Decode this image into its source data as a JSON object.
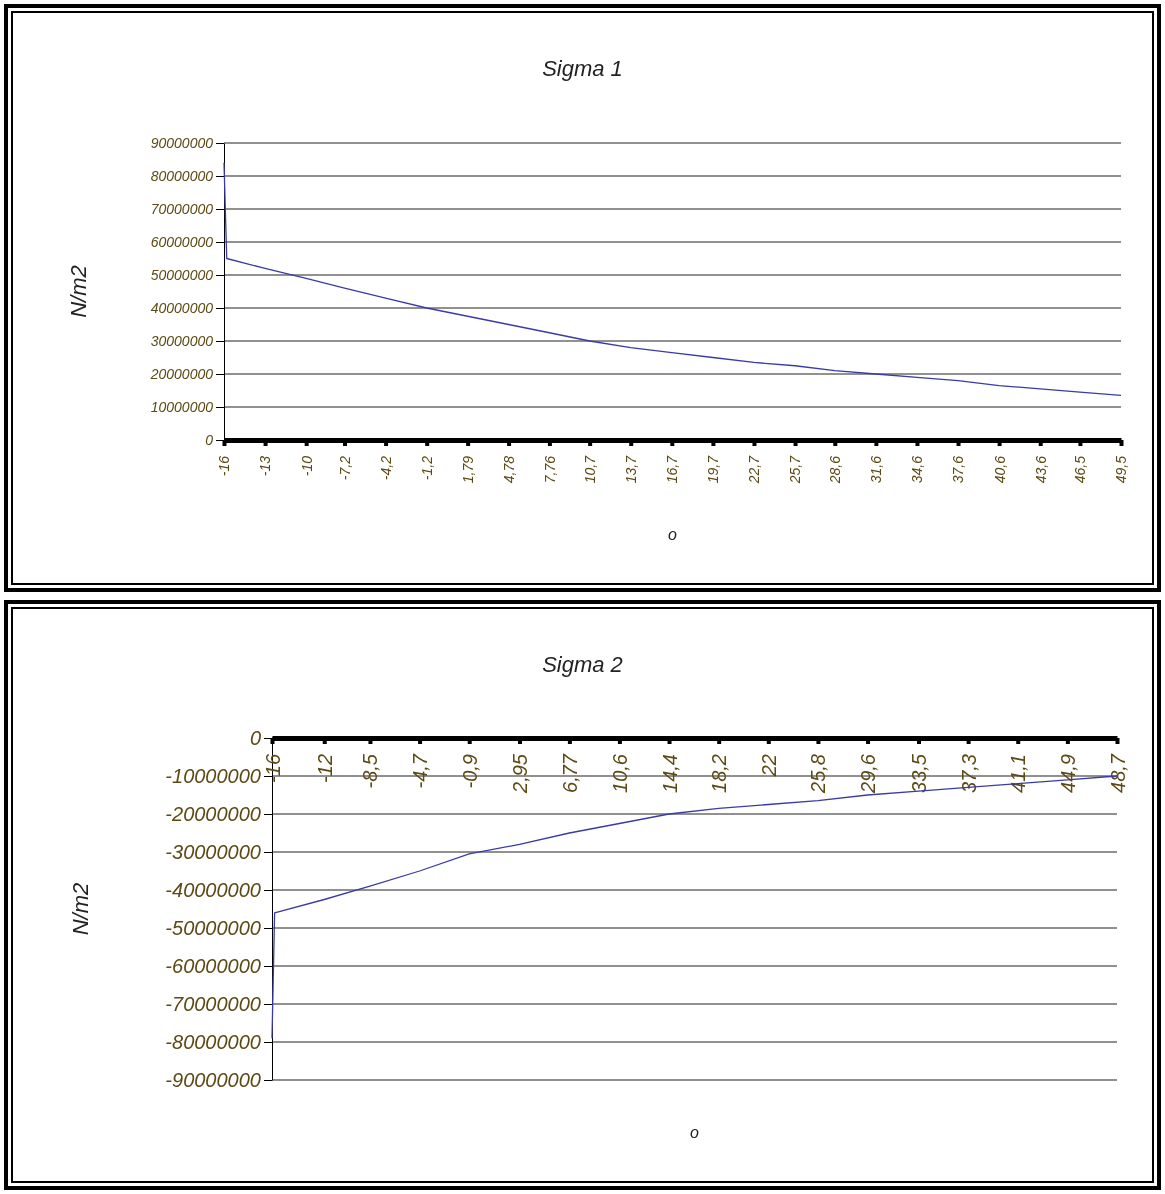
{
  "chart_data": [
    {
      "type": "line",
      "title": "Sigma 1",
      "xlabel": "o",
      "ylabel": "N/m2",
      "grid": "y",
      "marker": "none",
      "line_style": "solid",
      "xlim": [
        -16,
        49.5
      ],
      "xticks": [
        -16,
        -13,
        -10,
        {
          "value": -7.2,
          "label": "-7,2"
        },
        {
          "value": -4.2,
          "label": "-4,2"
        },
        {
          "value": -1.2,
          "label": "-1,2"
        },
        {
          "value": 1.79,
          "label": "1,79"
        },
        {
          "value": 4.78,
          "label": "4,78"
        },
        {
          "value": 7.76,
          "label": "7,76"
        },
        {
          "value": 10.7,
          "label": "10,7"
        },
        {
          "value": 13.7,
          "label": "13,7"
        },
        {
          "value": 16.7,
          "label": "16,7"
        },
        {
          "value": 19.7,
          "label": "19,7"
        },
        {
          "value": 22.7,
          "label": "22,7"
        },
        {
          "value": 25.7,
          "label": "25,7"
        },
        {
          "value": 28.6,
          "label": "28,6"
        },
        {
          "value": 31.6,
          "label": "31,6"
        },
        {
          "value": 34.6,
          "label": "34,6"
        },
        {
          "value": 37.6,
          "label": "37,6"
        },
        {
          "value": 40.6,
          "label": "40,6"
        },
        {
          "value": 43.6,
          "label": "43,6"
        },
        {
          "value": 46.5,
          "label": "46,5"
        },
        {
          "value": 49.5,
          "label": "49,5"
        }
      ],
      "ylim": [
        0,
        90000000
      ],
      "yticks": [
        0,
        10000000,
        20000000,
        30000000,
        40000000,
        50000000,
        60000000,
        70000000,
        80000000,
        90000000
      ],
      "x": [
        -16,
        -15.8,
        -13,
        -10,
        -7.2,
        -4.2,
        -1.2,
        1.79,
        4.78,
        7.76,
        10.7,
        13.7,
        16.7,
        19.7,
        22.7,
        25.7,
        28.6,
        31.6,
        34.6,
        37.6,
        40.6,
        43.6,
        46.5,
        49.5
      ],
      "series": [
        {
          "color": "#3a3aa8",
          "values": [
            84000000,
            55000000,
            52000000,
            49000000,
            46000000,
            43000000,
            40000000,
            37500000,
            35000000,
            32500000,
            30000000,
            28000000,
            26500000,
            25000000,
            23500000,
            22500000,
            21000000,
            20000000,
            19000000,
            18000000,
            16500000,
            15500000,
            14500000,
            13500000
          ]
        }
      ]
    },
    {
      "type": "line",
      "title": "Sigma 2",
      "xlabel": "o",
      "ylabel": "N/m2",
      "grid": "y",
      "marker": "none",
      "line_style": "solid",
      "xlim": [
        -16,
        48.7
      ],
      "xticks": [
        -16,
        -12,
        {
          "value": -8.5,
          "label": "-8,5"
        },
        {
          "value": -4.7,
          "label": "-4,7"
        },
        {
          "value": -0.9,
          "label": "-0,9"
        },
        {
          "value": 2.95,
          "label": "2,95"
        },
        {
          "value": 6.77,
          "label": "6,77"
        },
        {
          "value": 10.6,
          "label": "10,6"
        },
        {
          "value": 14.4,
          "label": "14,4"
        },
        {
          "value": 18.2,
          "label": "18,2"
        },
        22,
        {
          "value": 25.8,
          "label": "25,8"
        },
        {
          "value": 29.6,
          "label": "29,6"
        },
        {
          "value": 33.5,
          "label": "33,5"
        },
        {
          "value": 37.3,
          "label": "37,3"
        },
        {
          "value": 41.1,
          "label": "41,1"
        },
        {
          "value": 44.9,
          "label": "44,9"
        },
        {
          "value": 48.7,
          "label": "48,7"
        }
      ],
      "ylim": [
        -90000000,
        0
      ],
      "yticks": [
        0,
        -10000000,
        -20000000,
        -30000000,
        -40000000,
        -50000000,
        -60000000,
        -70000000,
        -80000000,
        -90000000
      ],
      "x": [
        -16,
        -15.8,
        -12,
        -8.5,
        -4.7,
        -0.9,
        2.95,
        6.77,
        10.6,
        14.4,
        18.2,
        22,
        25.8,
        29.6,
        33.5,
        37.3,
        41.1,
        44.9,
        48.7
      ],
      "series": [
        {
          "color": "#3a3aa8",
          "values": [
            -79000000,
            -46000000,
            -42500000,
            -39000000,
            -35000000,
            -30500000,
            -28000000,
            -25000000,
            -22500000,
            -20000000,
            -18500000,
            -17500000,
            -16500000,
            -15000000,
            -14000000,
            -13000000,
            -12000000,
            -11000000,
            -10000000
          ]
        }
      ]
    }
  ]
}
